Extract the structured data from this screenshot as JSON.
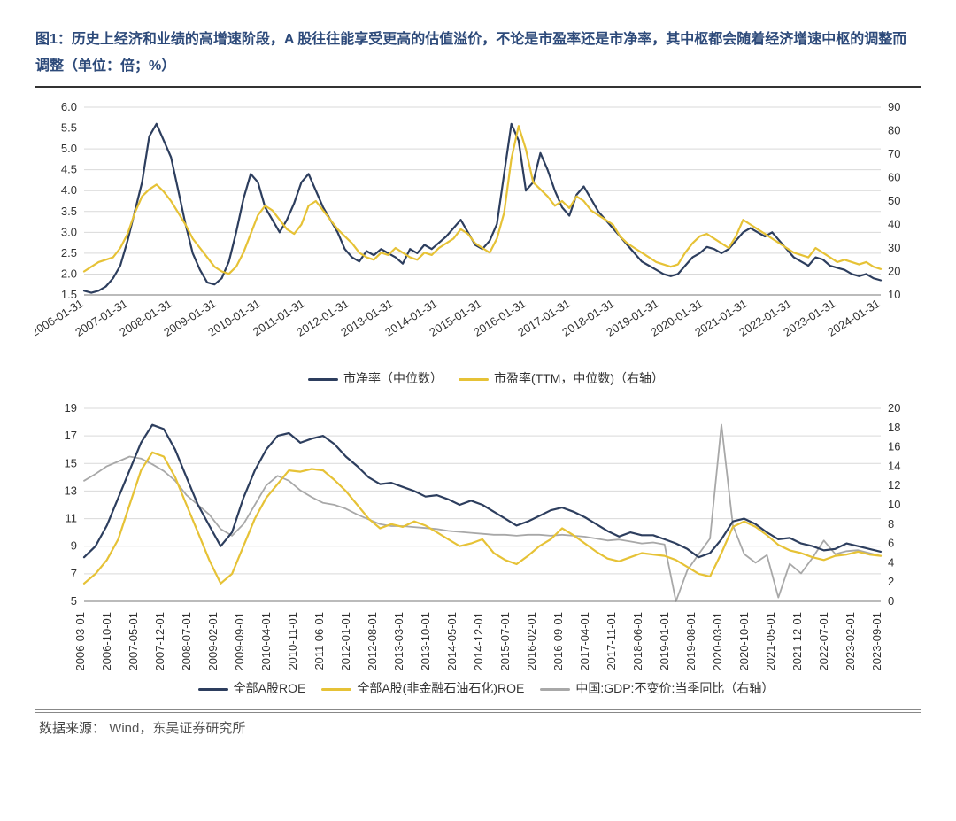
{
  "title": "图1：历史上经济和业绩的高增速阶段，A 股往往能享受更高的估值溢价，不论是市盈率还是市净率，其中枢都会随着经济增速中枢的调整而调整（单位：倍；%）",
  "source_label": "数据来源：",
  "source_text": "Wind，东吴证券研究所",
  "chart1": {
    "type": "line-dual-axis",
    "background_color": "#ffffff",
    "grid_color": "#d9d9d9",
    "left_axis": {
      "min": 1.5,
      "max": 6.0,
      "step": 0.5
    },
    "right_axis": {
      "min": 10,
      "max": 90,
      "step": 10
    },
    "x_labels": [
      "2006-01-31",
      "2007-01-31",
      "2008-01-31",
      "2009-01-31",
      "2010-01-31",
      "2011-01-31",
      "2012-01-31",
      "2013-01-31",
      "2014-01-31",
      "2015-01-31",
      "2016-01-31",
      "2017-01-31",
      "2018-01-31",
      "2019-01-31",
      "2020-01-31",
      "2021-01-31",
      "2022-01-31",
      "2023-01-31",
      "2024-01-31"
    ],
    "legend": [
      {
        "label": "市净率（中位数）",
        "color": "#2d3e5e"
      },
      {
        "label": "市盈率(TTM，中位数)（右轴）",
        "color": "#e6c236"
      }
    ],
    "series": {
      "pb": {
        "color": "#2d3e5e",
        "width": 2.2,
        "values": [
          1.6,
          1.55,
          1.6,
          1.7,
          1.9,
          2.2,
          2.8,
          3.5,
          4.2,
          5.3,
          5.6,
          5.2,
          4.8,
          4.0,
          3.2,
          2.5,
          2.1,
          1.8,
          1.75,
          1.9,
          2.3,
          3.0,
          3.8,
          4.4,
          4.2,
          3.6,
          3.3,
          3.0,
          3.3,
          3.7,
          4.2,
          4.4,
          4.0,
          3.6,
          3.3,
          3.0,
          2.6,
          2.4,
          2.3,
          2.55,
          2.45,
          2.6,
          2.5,
          2.4,
          2.25,
          2.6,
          2.5,
          2.7,
          2.6,
          2.75,
          2.9,
          3.1,
          3.3,
          3.0,
          2.7,
          2.6,
          2.8,
          3.2,
          4.4,
          5.6,
          5.2,
          4.0,
          4.2,
          4.9,
          4.5,
          4.0,
          3.6,
          3.4,
          3.9,
          4.1,
          3.8,
          3.5,
          3.3,
          3.1,
          2.9,
          2.7,
          2.5,
          2.3,
          2.2,
          2.1,
          2.0,
          1.95,
          2.0,
          2.2,
          2.4,
          2.5,
          2.65,
          2.6,
          2.5,
          2.6,
          2.8,
          3.0,
          3.1,
          3.0,
          2.9,
          3.0,
          2.8,
          2.6,
          2.4,
          2.3,
          2.2,
          2.4,
          2.35,
          2.2,
          2.15,
          2.1,
          2.0,
          1.95,
          2.0,
          1.9,
          1.85
        ]
      },
      "pe": {
        "color": "#e6c236",
        "width": 2.2,
        "values": [
          20,
          22,
          24,
          25,
          26,
          30,
          36,
          45,
          52,
          55,
          57,
          54,
          50,
          45,
          40,
          34,
          30,
          26,
          22,
          20,
          19,
          22,
          28,
          36,
          44,
          48,
          46,
          42,
          38,
          36,
          40,
          48,
          50,
          46,
          42,
          38,
          35,
          32,
          28,
          26,
          25,
          28,
          27,
          30,
          28,
          26,
          25,
          28,
          27,
          30,
          32,
          34,
          38,
          36,
          32,
          30,
          28,
          34,
          45,
          68,
          82,
          72,
          58,
          55,
          52,
          48,
          50,
          47,
          52,
          50,
          46,
          44,
          42,
          40,
          35,
          32,
          30,
          28,
          26,
          24,
          23,
          22,
          23,
          28,
          32,
          35,
          36,
          34,
          32,
          30,
          35,
          42,
          40,
          38,
          36,
          34,
          32,
          30,
          28,
          27,
          26,
          30,
          28,
          26,
          24,
          25,
          24,
          23,
          24,
          22,
          21
        ]
      }
    }
  },
  "chart2": {
    "type": "line-dual-axis",
    "background_color": "#ffffff",
    "grid_color": "#d9d9d9",
    "left_axis": {
      "min": 5,
      "max": 19,
      "step": 2
    },
    "right_axis": {
      "min": 0,
      "max": 20,
      "step": 2
    },
    "x_labels": [
      "2006-03-01",
      "2006-10-01",
      "2007-05-01",
      "2007-12-01",
      "2008-07-01",
      "2009-02-01",
      "2009-09-01",
      "2010-04-01",
      "2010-11-01",
      "2011-06-01",
      "2012-01-01",
      "2012-08-01",
      "2013-03-01",
      "2013-10-01",
      "2014-05-01",
      "2014-12-01",
      "2015-07-01",
      "2016-02-01",
      "2016-09-01",
      "2017-04-01",
      "2017-11-01",
      "2018-06-01",
      "2019-01-01",
      "2019-08-01",
      "2020-03-01",
      "2020-10-01",
      "2021-05-01",
      "2021-12-01",
      "2022-07-01",
      "2023-02-01",
      "2023-09-01"
    ],
    "legend": [
      {
        "label": "全部A股ROE",
        "color": "#2d3e5e"
      },
      {
        "label": "全部A股(非金融石油石化)ROE",
        "color": "#e6c236"
      },
      {
        "label": "中国:GDP:不变价:当季同比（右轴）",
        "color": "#a8a8a8"
      }
    ],
    "series": {
      "roe_all": {
        "color": "#2d3e5e",
        "width": 2.2,
        "values": [
          8.2,
          9.0,
          10.5,
          12.5,
          14.5,
          16.5,
          17.8,
          17.5,
          16.0,
          14.0,
          12.0,
          10.5,
          9.0,
          10.0,
          12.5,
          14.5,
          16.0,
          17.0,
          17.2,
          16.5,
          16.8,
          17.0,
          16.4,
          15.5,
          14.8,
          14.0,
          13.5,
          13.6,
          13.3,
          13.0,
          12.6,
          12.7,
          12.4,
          12.0,
          12.3,
          12.0,
          11.5,
          11.0,
          10.5,
          10.8,
          11.2,
          11.6,
          11.8,
          11.5,
          11.1,
          10.6,
          10.1,
          9.7,
          10.0,
          9.8,
          9.8,
          9.5,
          9.2,
          8.8,
          8.2,
          8.5,
          9.5,
          10.8,
          11.0,
          10.6,
          10.0,
          9.5,
          9.6,
          9.2,
          9.0,
          8.7,
          8.8,
          9.2,
          9.0,
          8.8,
          8.6
        ]
      },
      "roe_nf": {
        "color": "#e6c236",
        "width": 2.2,
        "values": [
          6.3,
          7.0,
          8.0,
          9.5,
          12.0,
          14.5,
          15.8,
          15.5,
          14.0,
          12.0,
          10.0,
          8.0,
          6.3,
          7.0,
          9.0,
          11.0,
          12.5,
          13.5,
          14.5,
          14.4,
          14.6,
          14.5,
          13.8,
          13.0,
          12.0,
          11.0,
          10.3,
          10.6,
          10.4,
          10.8,
          10.5,
          10.0,
          9.5,
          9.0,
          9.2,
          9.5,
          8.5,
          8.0,
          7.7,
          8.3,
          9.0,
          9.5,
          10.3,
          9.8,
          9.2,
          8.6,
          8.1,
          7.9,
          8.2,
          8.5,
          8.4,
          8.3,
          8.0,
          7.5,
          7.0,
          6.8,
          8.5,
          10.4,
          10.8,
          10.4,
          9.8,
          9.1,
          8.7,
          8.5,
          8.2,
          8.0,
          8.3,
          8.4,
          8.6,
          8.4,
          8.3
        ]
      },
      "gdp": {
        "color": "#a8a8a8",
        "width": 1.8,
        "values": [
          12.5,
          13.2,
          14.0,
          14.5,
          15.0,
          14.8,
          14.2,
          13.5,
          12.5,
          11.0,
          10.0,
          9.0,
          7.5,
          6.8,
          8.0,
          10.0,
          12.0,
          13.0,
          12.5,
          11.5,
          10.8,
          10.2,
          10.0,
          9.6,
          9.0,
          8.5,
          8.0,
          7.8,
          7.8,
          7.7,
          7.6,
          7.5,
          7.3,
          7.2,
          7.1,
          7.0,
          6.9,
          6.9,
          6.8,
          6.9,
          6.9,
          6.8,
          6.9,
          6.8,
          6.7,
          6.5,
          6.3,
          6.4,
          6.2,
          6.0,
          6.1,
          5.9,
          -6.8,
          3.2,
          4.9,
          6.5,
          18.3,
          7.9,
          4.9,
          4.0,
          4.8,
          0.4,
          3.9,
          2.9,
          4.5,
          6.3,
          4.9,
          5.2,
          5.3,
          5.0,
          4.7
        ]
      }
    }
  }
}
